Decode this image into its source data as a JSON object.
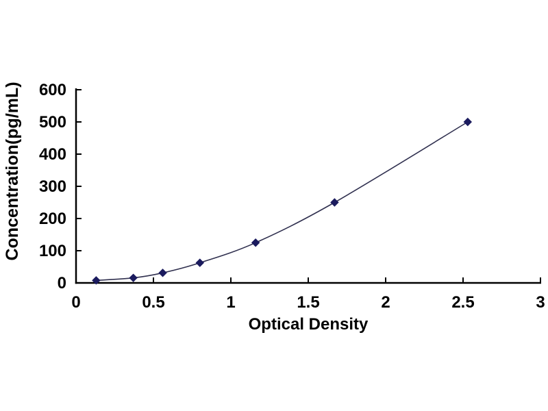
{
  "figure": {
    "background": "#ffffff"
  },
  "chart_data": {
    "type": "line",
    "subtype": "scatter-with-smooth-line-and-markers",
    "title": "",
    "xlabel": "Optical Density",
    "ylabel": "Concentration(pg/mL)",
    "xlim": [
      0,
      3
    ],
    "ylim": [
      0,
      600
    ],
    "x_ticks": [
      0,
      0.5,
      1,
      1.5,
      2,
      2.5,
      3
    ],
    "x_tick_labels": [
      "0",
      "0.5",
      "1",
      "1.5",
      "2",
      "2.5",
      "3"
    ],
    "y_ticks": [
      0,
      100,
      200,
      300,
      400,
      500,
      600
    ],
    "y_tick_labels": [
      "0",
      "100",
      "200",
      "300",
      "400",
      "500",
      "600"
    ],
    "grid": false,
    "legend": "none",
    "series": [
      {
        "name": "standard-curve",
        "marker": "diamond",
        "x": [
          0.13,
          0.37,
          0.56,
          0.8,
          1.16,
          1.67,
          2.53
        ],
        "y": [
          7.8,
          15.6,
          31.2,
          62.5,
          125,
          250,
          500
        ]
      }
    ],
    "colors": {
      "marker": "#1b1b5e",
      "line": "#30304f",
      "axis": "#000000",
      "text": "#000000",
      "background": "#ffffff"
    }
  }
}
